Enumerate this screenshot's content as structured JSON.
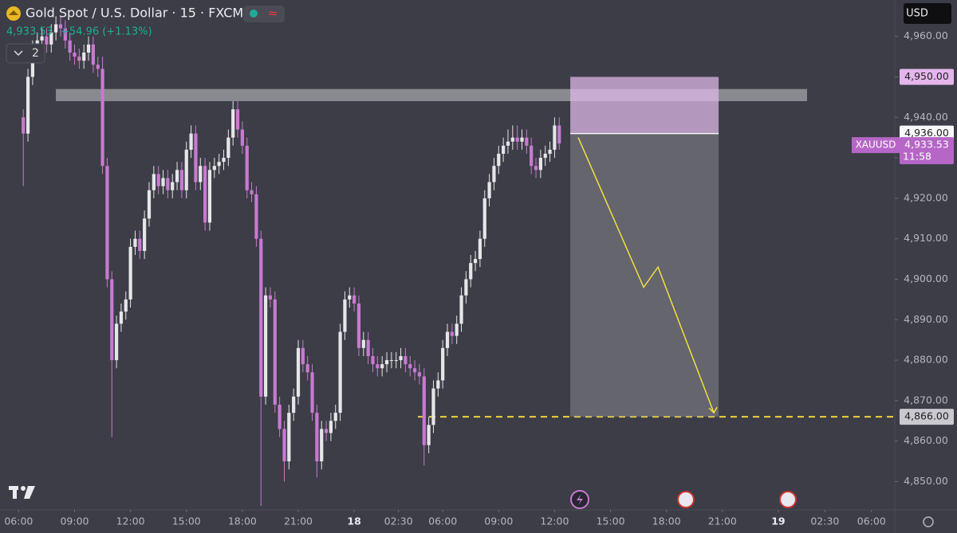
{
  "chart_data": {
    "type": "candlestick",
    "title": "Gold Spot / U.S. Dollar · 15 · FXCM",
    "last_price": {
      "value": 4933.53,
      "label": "4,933.53"
    },
    "change": "+54.96 (+1.13%)",
    "indicator_count": 2,
    "currency": "USD",
    "symbol": "XAUUSD",
    "countdown": "11:58",
    "up_color": "#e6e6e9",
    "down_color": "#c77ad2",
    "open": [
      4940,
      4936,
      4950,
      4957,
      4959,
      4960,
      4958,
      4961,
      4963,
      4962,
      4959,
      4956,
      4955,
      4954,
      4956,
      4958,
      4953,
      4952,
      4928,
      4900,
      4880,
      4889,
      4892,
      4895,
      4908,
      4910,
      4907,
      4915,
      4922,
      4926,
      4923,
      4925,
      4922,
      4924,
      4927,
      4922,
      4932,
      4936,
      4924,
      4928,
      4914,
      4927,
      4928,
      4929,
      4930,
      4935,
      4942,
      4937,
      4933,
      4922,
      4921,
      4910,
      4871,
      4896,
      4895,
      4869,
      4863,
      4855,
      4867,
      4871,
      4883,
      4879,
      4877,
      4867,
      4855,
      4863,
      4862,
      4865,
      4867,
      4887,
      4895,
      4896,
      4894,
      4883,
      4885,
      4881,
      4879,
      4878,
      4879,
      4880,
      4880,
      4880,
      4881,
      4879,
      4878,
      4877,
      4876,
      4859,
      4864,
      4873,
      4875,
      4883,
      4887,
      4886,
      4889,
      4896,
      4900,
      4904,
      4905,
      4910,
      4920,
      4924,
      4928,
      4931,
      4933,
      4934,
      4935,
      4934,
      4935,
      4933,
      4928,
      4927,
      4930,
      4931,
      4932,
      4938
    ],
    "high": [
      4942,
      4952,
      4959,
      4961,
      4962,
      4962,
      4963,
      4965,
      4965,
      4964,
      4961,
      4958,
      4957,
      4958,
      4960,
      4960,
      4955,
      4955,
      4930,
      4902,
      4891,
      4894,
      4897,
      4910,
      4912,
      4912,
      4917,
      4924,
      4928,
      4928,
      4927,
      4927,
      4926,
      4929,
      4929,
      4934,
      4938,
      4938,
      4930,
      4930,
      4929,
      4930,
      4931,
      4932,
      4937,
      4944,
      4944,
      4939,
      4935,
      4924,
      4923,
      4912,
      4898,
      4898,
      4897,
      4871,
      4865,
      4869,
      4873,
      4885,
      4885,
      4881,
      4879,
      4869,
      4865,
      4865,
      4867,
      4869,
      4889,
      4897,
      4898,
      4898,
      4896,
      4887,
      4887,
      4883,
      4881,
      4881,
      4882,
      4882,
      4882,
      4883,
      4883,
      4881,
      4880,
      4879,
      4878,
      4866,
      4875,
      4877,
      4885,
      4889,
      4889,
      4891,
      4898,
      4902,
      4906,
      4907,
      4912,
      4922,
      4926,
      4930,
      4933,
      4935,
      4937,
      4938,
      4938,
      4937,
      4937,
      4935,
      4930,
      4932,
      4933,
      4934,
      4940,
      4940
    ],
    "low": [
      4923,
      4934,
      4948,
      4955,
      4957,
      4956,
      4956,
      4959,
      4960,
      4957,
      4954,
      4953,
      4952,
      4952,
      4954,
      4951,
      4950,
      4926,
      4898,
      4861,
      4878,
      4887,
      4890,
      4893,
      4906,
      4905,
      4905,
      4913,
      4920,
      4921,
      4921,
      4920,
      4920,
      4922,
      4920,
      4920,
      4930,
      4922,
      4922,
      4912,
      4912,
      4925,
      4926,
      4927,
      4928,
      4933,
      4935,
      4931,
      4920,
      4919,
      4908,
      4844,
      4869,
      4893,
      4867,
      4861,
      4850,
      4853,
      4865,
      4869,
      4877,
      4875,
      4865,
      4851,
      4853,
      4860,
      4860,
      4863,
      4865,
      4885,
      4893,
      4892,
      4881,
      4881,
      4879,
      4877,
      4876,
      4876,
      4877,
      4878,
      4878,
      4878,
      4877,
      4876,
      4875,
      4874,
      4854,
      4857,
      4862,
      4871,
      4873,
      4881,
      4884,
      4884,
      4887,
      4894,
      4898,
      4902,
      4903,
      4908,
      4918,
      4922,
      4926,
      4929,
      4931,
      4932,
      4932,
      4932,
      4931,
      4926,
      4925,
      4925,
      4928,
      4929,
      4930,
      4932
    ],
    "close": [
      4936,
      4950,
      4957,
      4959,
      4960,
      4958,
      4961,
      4963,
      4962,
      4959,
      4956,
      4955,
      4954,
      4956,
      4958,
      4953,
      4952,
      4928,
      4900,
      4880,
      4889,
      4892,
      4895,
      4908,
      4910,
      4907,
      4915,
      4922,
      4926,
      4923,
      4925,
      4922,
      4924,
      4927,
      4922,
      4932,
      4936,
      4924,
      4928,
      4914,
      4927,
      4928,
      4929,
      4930,
      4935,
      4942,
      4937,
      4933,
      4922,
      4921,
      4910,
      4871,
      4896,
      4895,
      4869,
      4863,
      4855,
      4867,
      4871,
      4883,
      4879,
      4877,
      4867,
      4855,
      4863,
      4862,
      4865,
      4867,
      4887,
      4895,
      4896,
      4894,
      4883,
      4885,
      4881,
      4879,
      4878,
      4879,
      4880,
      4880,
      4880,
      4881,
      4879,
      4878,
      4877,
      4876,
      4859,
      4864,
      4873,
      4875,
      4883,
      4887,
      4886,
      4889,
      4896,
      4900,
      4904,
      4905,
      4910,
      4920,
      4924,
      4928,
      4931,
      4933,
      4934,
      4935,
      4934,
      4935,
      4933,
      4928,
      4927,
      4930,
      4931,
      4932,
      4938,
      4933.53
    ],
    "zone": [
      4944,
      4947
    ],
    "position": {
      "stop": {
        "value": 4950,
        "label": "4,950.00"
      },
      "entry": {
        "value": 4936,
        "label": "4,936.00"
      },
      "target": {
        "value": 4866,
        "label": "4,866.00"
      }
    },
    "projection": [
      4935,
      4898,
      4903,
      4867
    ],
    "ylim": [
      4843,
      4969
    ],
    "yticks": [
      {
        "value": 4850,
        "label": "4,850.00"
      },
      {
        "value": 4860,
        "label": "4,860.00"
      },
      {
        "value": 4870,
        "label": "4,870.00"
      },
      {
        "value": 4880,
        "label": "4,880.00"
      },
      {
        "value": 4890,
        "label": "4,890.00"
      },
      {
        "value": 4900,
        "label": "4,900.00"
      },
      {
        "value": 4910,
        "label": "4,910.00"
      },
      {
        "value": 4920,
        "label": "4,920.00"
      },
      {
        "value": 4930,
        "label": "4,930.00"
      },
      {
        "value": 4940,
        "label": "4,940.00"
      },
      {
        "value": 4950,
        "label": "4,950.00"
      },
      {
        "value": 4960,
        "label": "4,960.00"
      }
    ],
    "xlim": [
      -5,
      187
    ],
    "xticks": [
      {
        "value": -1,
        "label": "06:00"
      },
      {
        "value": 11,
        "label": "09:00"
      },
      {
        "value": 23,
        "label": "12:00"
      },
      {
        "value": 35,
        "label": "15:00"
      },
      {
        "value": 47,
        "label": "18:00"
      },
      {
        "value": 59,
        "label": "21:00"
      },
      {
        "value": 71,
        "label": "18"
      },
      {
        "value": 80.5,
        "label": "02:30"
      },
      {
        "value": 90,
        "label": "06:00"
      },
      {
        "value": 102,
        "label": "09:00"
      },
      {
        "value": 114,
        "label": "12:00"
      },
      {
        "value": 126,
        "label": "15:00"
      },
      {
        "value": 138,
        "label": "18:00"
      },
      {
        "value": 150,
        "label": "21:00"
      },
      {
        "value": 162,
        "label": "19"
      },
      {
        "value": 172,
        "label": "02:30"
      },
      {
        "value": 182,
        "label": "06:00"
      }
    ]
  }
}
